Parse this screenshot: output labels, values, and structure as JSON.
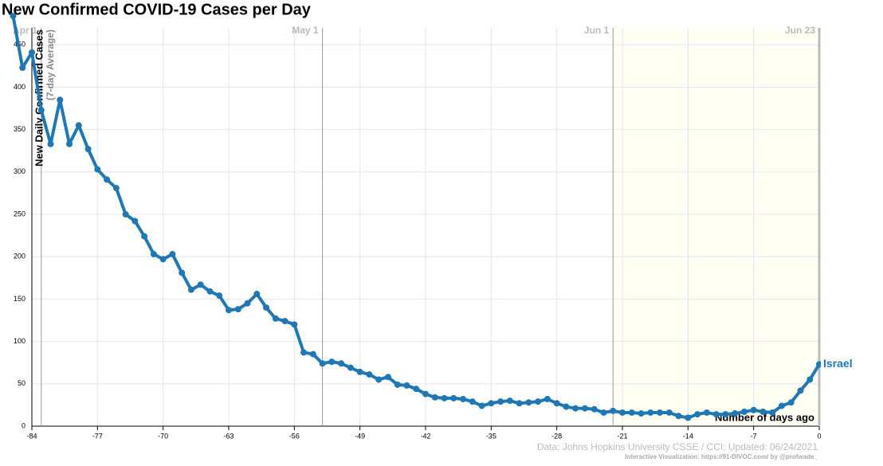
{
  "chart_data": {
    "type": "line",
    "title": "New Confirmed COVID-19 Cases per Day",
    "y_label": "New Daily Confirmed Cases",
    "y_sublabel": "(7-day Average)",
    "x_label": "Number of days ago",
    "source": "Data: Johns Hopkins University CSSE / CCI; Updated: 06/24/2021",
    "credit": "Interactive Visualization: https://91-DIVOC.com/ by @profwade_",
    "xlim": [
      -84,
      0
    ],
    "xticks": [
      -84,
      -77,
      -70,
      -63,
      -56,
      -49,
      -42,
      -35,
      -28,
      -21,
      -14,
      -7,
      0
    ],
    "ylim": [
      0,
      470
    ],
    "yticks": [
      0,
      50,
      100,
      150,
      200,
      250,
      300,
      350,
      400,
      450
    ],
    "grid": true,
    "date_markers": [
      {
        "x": -83,
        "label": "Apr 1"
      },
      {
        "x": -53,
        "label": "May 1"
      },
      {
        "x": -22,
        "label": "Jun 1"
      },
      {
        "x": 0,
        "label": "Jun 23"
      }
    ],
    "x": [
      -86,
      -85,
      -84,
      -83,
      -82,
      -81,
      -80,
      -79,
      -78,
      -77,
      -76,
      -75,
      -74,
      -73,
      -72,
      -71,
      -70,
      -69,
      -68,
      -67,
      -66,
      -65,
      -64,
      -63,
      -62,
      -61,
      -60,
      -59,
      -58,
      -57,
      -56,
      -55,
      -54,
      -53,
      -52,
      -51,
      -50,
      -49,
      -48,
      -47,
      -46,
      -45,
      -44,
      -43,
      -42,
      -41,
      -40,
      -39,
      -38,
      -37,
      -36,
      -35,
      -34,
      -33,
      -32,
      -31,
      -30,
      -29,
      -28,
      -27,
      -26,
      -25,
      -24,
      -23,
      -22,
      -21,
      -20,
      -19,
      -18,
      -17,
      -16,
      -15,
      -14,
      -13,
      -12,
      -11,
      -10,
      -9,
      -8,
      -7,
      -6,
      -5,
      -4,
      -3,
      -2,
      -1,
      0
    ],
    "series": [
      {
        "name": "Israel",
        "color": "#1f77b4",
        "values": [
          484,
          423,
          441,
          373,
          333,
          385,
          333,
          355,
          327,
          303,
          291,
          281,
          250,
          242,
          224,
          203,
          197,
          203,
          181,
          161,
          167,
          159,
          154,
          137,
          138,
          145,
          156,
          140,
          127,
          124,
          120,
          87,
          85,
          74,
          76,
          74,
          69,
          64,
          61,
          55,
          58,
          49,
          48,
          44,
          38,
          34,
          33,
          33,
          32,
          29,
          24,
          27,
          29,
          30,
          27,
          28,
          29,
          32,
          27,
          23,
          21,
          21,
          20,
          16,
          18,
          16,
          16,
          15,
          16,
          16,
          16,
          12,
          10,
          14,
          16,
          14,
          14,
          15,
          17,
          19,
          17,
          16,
          24,
          28,
          42,
          55,
          73
        ]
      }
    ]
  }
}
